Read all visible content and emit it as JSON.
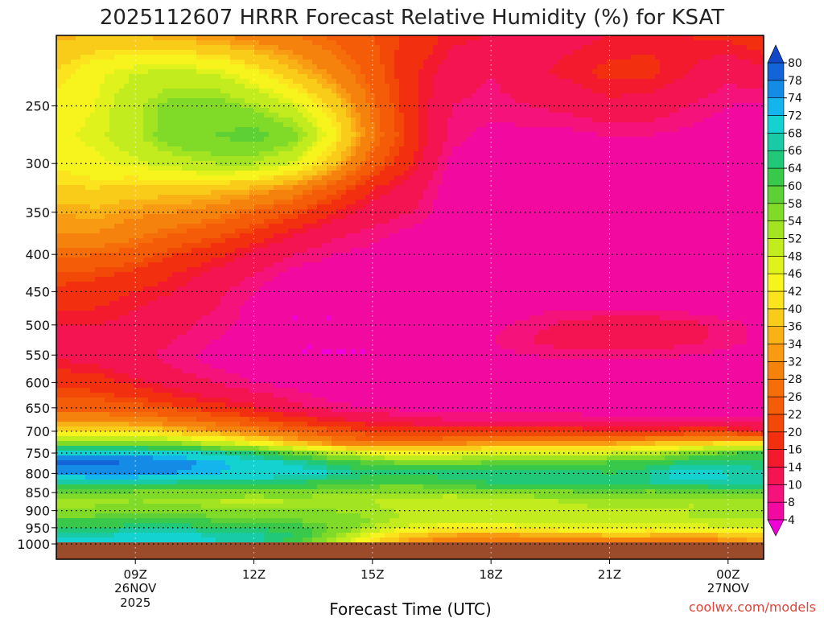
{
  "chart_data": {
    "type": "heatmap",
    "title": "2025112607 HRRR Forecast Relative Humidity (%) for KSAT",
    "xlabel": "Forecast Time (UTC)",
    "ylabel": "",
    "credit": "coolwx.com/models",
    "credit_color": "#e0453a",
    "ground_color": "#9b4a2a",
    "grid": true,
    "y_axis": {
      "scale": "log-pressure",
      "range_hPa": [
        1000,
        200
      ],
      "ticks": [
        "250",
        "300",
        "350",
        "400",
        "450",
        "500",
        "550",
        "600",
        "650",
        "700",
        "750",
        "800",
        "850",
        "900",
        "950",
        "1000"
      ]
    },
    "x_axis": {
      "range_hours_utc": [
        7.0,
        24.9
      ],
      "ticks": [
        {
          "label": "09Z",
          "sub1": "26NOV",
          "sub2": "2025"
        },
        {
          "label": "12Z",
          "sub1": "",
          "sub2": ""
        },
        {
          "label": "15Z",
          "sub1": "",
          "sub2": ""
        },
        {
          "label": "18Z",
          "sub1": "",
          "sub2": ""
        },
        {
          "label": "21Z",
          "sub1": "",
          "sub2": ""
        },
        {
          "label": "00Z",
          "sub1": "27NOV",
          "sub2": ""
        }
      ],
      "tick_hours": [
        9,
        12,
        15,
        18,
        21,
        24
      ]
    },
    "colorbar": {
      "levels": [
        "4",
        "8",
        "10",
        "14",
        "16",
        "20",
        "22",
        "26",
        "28",
        "32",
        "34",
        "36",
        "40",
        "42",
        "46",
        "48",
        "52",
        "54",
        "58",
        "60",
        "64",
        "66",
        "68",
        "72",
        "74",
        "78",
        "80"
      ],
      "colors": [
        "#f000d8",
        "#f20aa0",
        "#f5127a",
        "#f41452",
        "#f21a2c",
        "#f23010",
        "#f24808",
        "#f45c08",
        "#f56e0a",
        "#f6820e",
        "#f89a12",
        "#f9b216",
        "#facc1a",
        "#fbe41e",
        "#f6f41c",
        "#e0f21c",
        "#c2ec1e",
        "#a2e422",
        "#80da28",
        "#5cd034",
        "#38c84a",
        "#20c878",
        "#18caa6",
        "#14d2d0",
        "#14b4ec",
        "#148ce6",
        "#1264d8",
        "#1248c8"
      ]
    },
    "x_hours": [
      7,
      8,
      9,
      10,
      11,
      12,
      13,
      14,
      15,
      16,
      17,
      18,
      19,
      20,
      21,
      22,
      23,
      24,
      25
    ],
    "y_levels_hPa": [
      1000,
      975,
      950,
      925,
      900,
      875,
      850,
      825,
      800,
      775,
      750,
      725,
      700,
      675,
      650,
      625,
      600,
      575,
      550,
      525,
      500,
      475,
      450,
      425,
      400,
      375,
      350,
      325,
      300,
      275,
      250,
      225,
      200
    ],
    "rh_rows": [
      [
        69,
        69,
        70,
        70,
        68,
        67,
        62,
        50,
        38,
        31,
        28,
        26,
        24,
        24,
        26,
        28,
        27,
        30,
        34
      ],
      [
        68,
        68,
        69,
        69,
        68,
        67,
        64,
        55,
        44,
        36,
        33,
        32,
        33,
        34,
        35,
        35,
        34,
        35,
        38
      ],
      [
        63,
        63,
        66,
        66,
        64,
        64,
        62,
        58,
        52,
        46,
        44,
        44,
        45,
        46,
        46,
        45,
        46,
        47,
        49
      ],
      [
        60,
        60,
        62,
        62,
        59,
        58,
        58,
        56,
        54,
        51,
        49,
        49,
        50,
        51,
        52,
        51,
        52,
        52,
        52
      ],
      [
        55,
        55,
        56,
        57,
        55,
        54,
        55,
        54,
        53,
        51,
        50,
        50,
        51,
        51,
        52,
        52,
        52,
        52,
        52
      ],
      [
        53,
        53,
        54,
        53,
        52,
        51,
        52,
        52,
        52,
        50,
        49,
        50,
        51,
        52,
        53,
        52,
        52,
        52,
        52
      ],
      [
        58,
        58,
        57,
        56,
        56,
        56,
        56,
        55,
        55,
        54,
        54,
        55,
        56,
        57,
        58,
        57,
        58,
        59,
        59
      ],
      [
        66,
        66,
        66,
        65,
        64,
        64,
        64,
        62,
        60,
        60,
        62,
        64,
        65,
        66,
        65,
        66,
        67,
        68,
        68
      ],
      [
        75,
        76,
        76,
        74,
        72,
        71,
        70,
        68,
        65,
        65,
        66,
        66,
        66,
        66,
        64,
        66,
        71,
        68,
        66
      ],
      [
        79,
        79,
        78,
        76,
        73,
        71,
        68,
        64,
        60,
        58,
        58,
        59,
        60,
        60,
        61,
        63,
        66,
        66,
        65
      ],
      [
        71,
        72,
        72,
        70,
        67,
        64,
        58,
        51,
        46,
        45,
        46,
        48,
        48,
        48,
        48,
        51,
        55,
        59,
        63
      ],
      [
        56,
        56,
        56,
        53,
        49,
        43,
        36,
        30,
        27,
        28,
        30,
        31,
        32,
        32,
        32,
        34,
        37,
        39,
        38
      ],
      [
        42,
        42,
        40,
        37,
        33,
        30,
        26,
        23,
        20,
        19,
        19,
        19,
        19,
        18,
        17,
        17,
        18,
        18,
        14
      ],
      [
        31,
        31,
        30,
        28,
        25,
        22,
        18,
        15,
        13,
        11,
        10,
        10,
        10,
        10,
        9,
        9,
        9,
        9,
        8
      ],
      [
        25,
        25,
        24,
        21,
        18,
        15,
        11,
        9,
        8,
        7,
        6,
        6,
        6,
        6,
        6,
        6,
        6,
        6,
        6
      ],
      [
        22,
        21,
        19,
        16,
        13,
        11,
        9,
        7,
        6,
        5,
        5,
        5,
        5,
        5,
        5,
        5,
        5,
        5,
        5
      ],
      [
        19,
        18,
        15,
        12,
        10,
        8,
        7,
        6,
        5,
        5,
        5,
        5,
        5,
        5,
        5,
        5,
        5,
        6,
        6
      ],
      [
        16,
        15,
        12,
        10,
        8,
        7,
        6,
        5,
        5,
        5,
        5,
        5,
        6,
        6,
        6,
        6,
        6,
        6,
        6
      ],
      [
        13,
        12,
        11,
        9,
        7,
        5,
        4,
        4,
        4,
        5,
        6,
        7,
        8,
        9,
        9,
        9,
        8,
        7,
        6
      ],
      [
        13,
        13,
        12,
        10,
        8,
        6,
        4,
        4,
        4,
        5,
        7,
        8,
        10,
        12,
        12,
        12,
        11,
        9,
        7
      ],
      [
        14,
        14,
        13,
        11,
        9,
        7,
        4,
        4,
        4,
        5,
        6,
        7,
        9,
        11,
        12,
        12,
        11,
        9,
        7
      ],
      [
        16,
        16,
        14,
        12,
        10,
        7,
        4,
        4,
        5,
        6,
        6,
        6,
        7,
        8,
        8,
        8,
        7,
        6,
        6
      ],
      [
        19,
        18,
        16,
        14,
        11,
        8,
        5,
        4,
        5,
        6,
        6,
        6,
        6,
        6,
        6,
        6,
        6,
        5,
        5
      ],
      [
        22,
        21,
        19,
        16,
        13,
        10,
        7,
        6,
        6,
        6,
        5,
        5,
        5,
        5,
        5,
        5,
        5,
        5,
        5
      ],
      [
        27,
        26,
        24,
        20,
        17,
        13,
        10,
        8,
        7,
        6,
        5,
        5,
        5,
        5,
        5,
        5,
        5,
        5,
        5
      ],
      [
        32,
        32,
        29,
        26,
        23,
        19,
        14,
        11,
        9,
        7,
        6,
        6,
        6,
        6,
        5,
        5,
        5,
        5,
        5
      ],
      [
        34,
        35,
        33,
        32,
        30,
        26,
        22,
        16,
        12,
        10,
        6,
        6,
        6,
        6,
        5,
        5,
        5,
        5,
        5
      ],
      [
        39,
        40,
        38,
        38,
        37,
        35,
        31,
        24,
        16,
        12,
        6,
        6,
        6,
        6,
        6,
        6,
        6,
        6,
        6
      ],
      [
        43,
        45,
        47,
        50,
        52,
        52,
        47,
        37,
        24,
        16,
        7,
        6,
        6,
        6,
        6,
        6,
        6,
        6,
        6
      ],
      [
        45,
        47,
        51,
        57,
        58,
        60,
        56,
        44,
        29,
        18,
        9,
        7,
        7,
        7,
        8,
        8,
        7,
        6,
        6
      ],
      [
        44,
        46,
        51,
        56,
        56,
        53,
        48,
        39,
        27,
        17,
        10,
        9,
        10,
        11,
        13,
        12,
        10,
        8,
        7
      ],
      [
        40,
        45,
        48,
        49,
        48,
        43,
        37,
        31,
        24,
        17,
        12,
        10,
        13,
        15,
        17,
        17,
        14,
        11,
        13
      ],
      [
        35,
        36,
        36,
        34,
        32,
        30,
        28,
        25,
        22,
        19,
        15,
        14,
        13,
        13,
        14,
        15,
        16,
        17,
        19
      ]
    ]
  }
}
